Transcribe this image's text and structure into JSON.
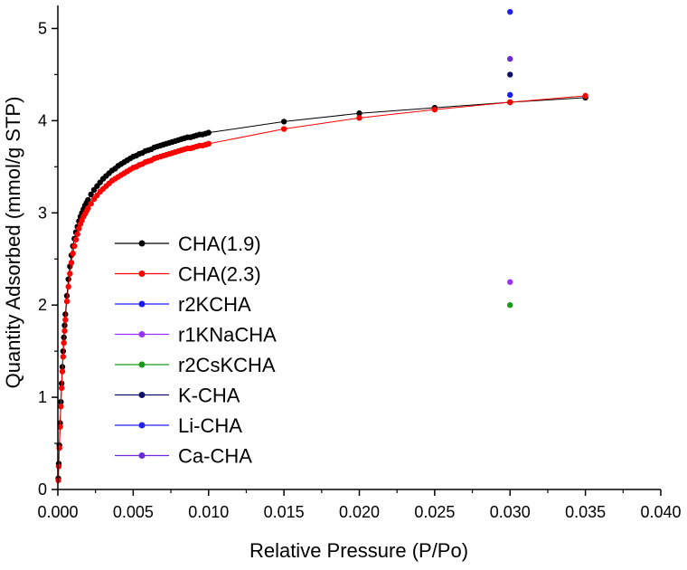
{
  "chart_data": {
    "type": "scatter",
    "title": "",
    "xlabel": "Relative Pressure (P/Po)",
    "ylabel": "Quantity Adsorbed (mmol/g STP)",
    "xlim": [
      0,
      0.04
    ],
    "ylim": [
      0,
      5.25
    ],
    "x_ticks": [
      0.0,
      0.005,
      0.01,
      0.015,
      0.02,
      0.025,
      0.03,
      0.035,
      0.04
    ],
    "x_tick_labels": [
      "0.000",
      "0.005",
      "0.010",
      "0.015",
      "0.020",
      "0.025",
      "0.030",
      "0.035",
      "0.040"
    ],
    "y_ticks": [
      0,
      1,
      2,
      3,
      4,
      5
    ],
    "y_tick_labels": [
      "0",
      "1",
      "2",
      "3",
      "4",
      "5"
    ],
    "legend_position": "center-left",
    "series": [
      {
        "name": "CHA(1.9)",
        "color": "#000000",
        "points": [
          [
            3e-05,
            0.12
          ],
          [
            6e-05,
            0.28
          ],
          [
            0.0001,
            0.48
          ],
          [
            0.00015,
            0.72
          ],
          [
            0.0002,
            0.95
          ],
          [
            0.00025,
            1.15
          ],
          [
            0.0003,
            1.33
          ],
          [
            0.00035,
            1.5
          ],
          [
            0.0004,
            1.65
          ],
          [
            0.00045,
            1.78
          ],
          [
            0.0005,
            1.9
          ],
          [
            0.0006,
            2.1
          ],
          [
            0.0007,
            2.28
          ],
          [
            0.0008,
            2.42
          ],
          [
            0.0009,
            2.54
          ],
          [
            0.001,
            2.64
          ],
          [
            0.0011,
            2.72
          ],
          [
            0.0012,
            2.79
          ],
          [
            0.0013,
            2.85
          ],
          [
            0.0014,
            2.91
          ],
          [
            0.0015,
            2.96
          ],
          [
            0.0016,
            3.0
          ],
          [
            0.0017,
            3.04
          ],
          [
            0.0018,
            3.08
          ],
          [
            0.0019,
            3.11
          ],
          [
            0.002,
            3.14
          ],
          [
            0.0022,
            3.2
          ],
          [
            0.0024,
            3.25
          ],
          [
            0.0026,
            3.29
          ],
          [
            0.0028,
            3.33
          ],
          [
            0.003,
            3.37
          ],
          [
            0.0032,
            3.4
          ],
          [
            0.0034,
            3.43
          ],
          [
            0.0036,
            3.46
          ],
          [
            0.0038,
            3.48
          ],
          [
            0.004,
            3.51
          ],
          [
            0.0042,
            3.53
          ],
          [
            0.0044,
            3.55
          ],
          [
            0.0046,
            3.57
          ],
          [
            0.0048,
            3.59
          ],
          [
            0.005,
            3.61
          ],
          [
            0.0052,
            3.62
          ],
          [
            0.0054,
            3.64
          ],
          [
            0.0056,
            3.65
          ],
          [
            0.0058,
            3.67
          ],
          [
            0.006,
            3.68
          ],
          [
            0.0062,
            3.69
          ],
          [
            0.0064,
            3.71
          ],
          [
            0.0066,
            3.72
          ],
          [
            0.0068,
            3.73
          ],
          [
            0.007,
            3.74
          ],
          [
            0.0072,
            3.75
          ],
          [
            0.0074,
            3.76
          ],
          [
            0.0076,
            3.77
          ],
          [
            0.0078,
            3.78
          ],
          [
            0.008,
            3.79
          ],
          [
            0.0082,
            3.8
          ],
          [
            0.0084,
            3.81
          ],
          [
            0.0086,
            3.82
          ],
          [
            0.0088,
            3.82
          ],
          [
            0.009,
            3.83
          ],
          [
            0.0092,
            3.84
          ],
          [
            0.0094,
            3.85
          ],
          [
            0.0096,
            3.85
          ],
          [
            0.0098,
            3.86
          ],
          [
            0.01,
            3.87
          ],
          [
            0.015,
            3.99
          ],
          [
            0.02,
            4.08
          ],
          [
            0.025,
            4.14
          ],
          [
            0.03,
            4.2
          ],
          [
            0.035,
            4.25
          ]
        ]
      },
      {
        "name": "CHA(2.3)",
        "color": "#ff0000",
        "points": [
          [
            3e-05,
            0.1
          ],
          [
            6e-05,
            0.25
          ],
          [
            0.0001,
            0.45
          ],
          [
            0.00015,
            0.68
          ],
          [
            0.0002,
            0.9
          ],
          [
            0.00025,
            1.1
          ],
          [
            0.0003,
            1.28
          ],
          [
            0.00035,
            1.44
          ],
          [
            0.0004,
            1.59
          ],
          [
            0.00045,
            1.72
          ],
          [
            0.0005,
            1.84
          ],
          [
            0.0006,
            2.04
          ],
          [
            0.0007,
            2.2
          ],
          [
            0.0008,
            2.34
          ],
          [
            0.0009,
            2.46
          ],
          [
            0.001,
            2.56
          ],
          [
            0.0011,
            2.64
          ],
          [
            0.0012,
            2.71
          ],
          [
            0.0013,
            2.77
          ],
          [
            0.0014,
            2.83
          ],
          [
            0.0015,
            2.88
          ],
          [
            0.0016,
            2.92
          ],
          [
            0.0017,
            2.96
          ],
          [
            0.0018,
            2.99
          ],
          [
            0.0019,
            3.02
          ],
          [
            0.002,
            3.05
          ],
          [
            0.0022,
            3.1
          ],
          [
            0.0024,
            3.15
          ],
          [
            0.0026,
            3.19
          ],
          [
            0.0028,
            3.23
          ],
          [
            0.003,
            3.26
          ],
          [
            0.0032,
            3.29
          ],
          [
            0.0034,
            3.32
          ],
          [
            0.0036,
            3.35
          ],
          [
            0.0038,
            3.37
          ],
          [
            0.004,
            3.39
          ],
          [
            0.0042,
            3.41
          ],
          [
            0.0044,
            3.43
          ],
          [
            0.0046,
            3.45
          ],
          [
            0.0048,
            3.47
          ],
          [
            0.005,
            3.49
          ],
          [
            0.0052,
            3.5
          ],
          [
            0.0054,
            3.52
          ],
          [
            0.0056,
            3.53
          ],
          [
            0.0058,
            3.55
          ],
          [
            0.006,
            3.56
          ],
          [
            0.0062,
            3.57
          ],
          [
            0.0064,
            3.59
          ],
          [
            0.0066,
            3.6
          ],
          [
            0.0068,
            3.61
          ],
          [
            0.007,
            3.62
          ],
          [
            0.0072,
            3.63
          ],
          [
            0.0074,
            3.64
          ],
          [
            0.0076,
            3.65
          ],
          [
            0.0078,
            3.66
          ],
          [
            0.008,
            3.67
          ],
          [
            0.0082,
            3.68
          ],
          [
            0.0084,
            3.69
          ],
          [
            0.0086,
            3.7
          ],
          [
            0.0088,
            3.7
          ],
          [
            0.009,
            3.71
          ],
          [
            0.0092,
            3.72
          ],
          [
            0.0094,
            3.73
          ],
          [
            0.0096,
            3.73
          ],
          [
            0.0098,
            3.74
          ],
          [
            0.01,
            3.75
          ],
          [
            0.015,
            3.91
          ],
          [
            0.02,
            4.03
          ],
          [
            0.025,
            4.12
          ],
          [
            0.03,
            4.2
          ],
          [
            0.035,
            4.27
          ]
        ]
      },
      {
        "name": "r2KCHA",
        "color": "#1a1aff",
        "points": [
          [
            0.03,
            4.28
          ]
        ]
      },
      {
        "name": "r1KNaCHA",
        "color": "#9b30ff",
        "points": [
          [
            0.03,
            2.25
          ]
        ]
      },
      {
        "name": "r2CsKCHA",
        "color": "#1a9a1a",
        "points": [
          [
            0.03,
            2.0
          ]
        ]
      },
      {
        "name": "K-CHA",
        "color": "#10106a",
        "points": [
          [
            0.03,
            4.5
          ]
        ]
      },
      {
        "name": "Li-CHA",
        "color": "#2222ee",
        "points": [
          [
            0.03,
            5.18
          ]
        ]
      },
      {
        "name": "Ca-CHA",
        "color": "#6a2ad8",
        "points": [
          [
            0.03,
            4.67
          ]
        ]
      }
    ]
  }
}
